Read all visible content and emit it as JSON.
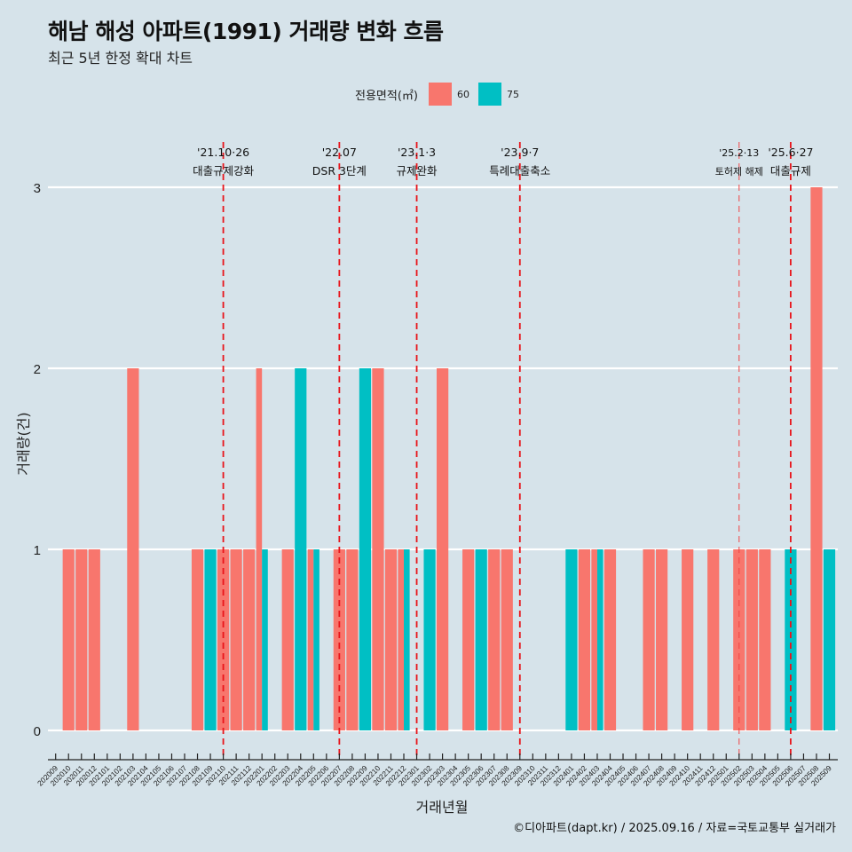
{
  "header": {
    "title": "해남 해성 아파트(1991) 거래량 변화 흐름",
    "subtitle": "최근 5년 한정 확대 차트"
  },
  "legend": {
    "title": "전용면적(㎡)",
    "items": [
      {
        "label": "60",
        "color": "#f8766d"
      },
      {
        "label": "75",
        "color": "#00bfc4"
      }
    ]
  },
  "caption": "©디아파트(dapt.kr) / 2025.09.16 / 자료=국토교통부 실거래가",
  "chart_data": {
    "type": "bar",
    "title": "해남 해성 아파트(1991) 거래량 변화 흐름",
    "subtitle": "최근 5년 한정 확대 차트",
    "xlabel": "거래년월",
    "ylabel": "거래량(건)",
    "ylim": [
      0,
      3
    ],
    "yticks": [
      0,
      1,
      2,
      3
    ],
    "grid": "horizontal major",
    "legend_position": "top",
    "bar_position": "dodge",
    "categories": [
      "202009",
      "202010",
      "202011",
      "202012",
      "202101",
      "202102",
      "202103",
      "202104",
      "202105",
      "202106",
      "202107",
      "202108",
      "202109",
      "202110",
      "202111",
      "202112",
      "202201",
      "202202",
      "202203",
      "202204",
      "202205",
      "202206",
      "202207",
      "202208",
      "202209",
      "202210",
      "202211",
      "202212",
      "202301",
      "202302",
      "202303",
      "202304",
      "202305",
      "202306",
      "202307",
      "202308",
      "202309",
      "202310",
      "202311",
      "202312",
      "202401",
      "202402",
      "202403",
      "202404",
      "202405",
      "202406",
      "202407",
      "202408",
      "202409",
      "202410",
      "202411",
      "202412",
      "202501",
      "202502",
      "202503",
      "202504",
      "202505",
      "202506",
      "202507",
      "202508",
      "202509"
    ],
    "series": [
      {
        "name": "60",
        "color": "#f8766d",
        "values": [
          0,
          1,
          1,
          1,
          0,
          0,
          2,
          0,
          0,
          0,
          0,
          1,
          0,
          1,
          1,
          1,
          2,
          0,
          1,
          0,
          1,
          0,
          1,
          1,
          0,
          2,
          1,
          1,
          0,
          0,
          2,
          0,
          1,
          0,
          1,
          1,
          0,
          0,
          0,
          0,
          0,
          1,
          1,
          1,
          0,
          0,
          1,
          1,
          0,
          1,
          0,
          1,
          0,
          1,
          1,
          1,
          0,
          0,
          0,
          3,
          0
        ]
      },
      {
        "name": "75",
        "color": "#00bfc4",
        "values": [
          0,
          0,
          0,
          0,
          0,
          0,
          0,
          0,
          0,
          0,
          0,
          0,
          1,
          0,
          0,
          0,
          1,
          0,
          0,
          2,
          1,
          0,
          0,
          0,
          2,
          0,
          0,
          1,
          0,
          1,
          0,
          0,
          0,
          1,
          0,
          0,
          0,
          0,
          0,
          0,
          1,
          0,
          1,
          0,
          0,
          0,
          0,
          0,
          0,
          0,
          0,
          0,
          0,
          0,
          0,
          0,
          0,
          1,
          0,
          0,
          1
        ]
      }
    ],
    "annotations": [
      {
        "month": "202110",
        "date": "'21.10·26",
        "label": "대출규제강화",
        "style": "bold"
      },
      {
        "month": "202207",
        "date": "'22.07",
        "label": "DSR 3단계",
        "style": "bold"
      },
      {
        "month": "202301",
        "date": "'23.1·3",
        "label": "규제완화",
        "style": "bold"
      },
      {
        "month": "202309",
        "date": "'23.9·7",
        "label": "특례대출축소",
        "style": "bold"
      },
      {
        "month": "202502",
        "date": "'25.2·13",
        "label": "토허제 해제",
        "style": "thin"
      },
      {
        "month": "202506",
        "date": "'25.6·27",
        "label": "대출규제",
        "style": "bold"
      }
    ]
  }
}
